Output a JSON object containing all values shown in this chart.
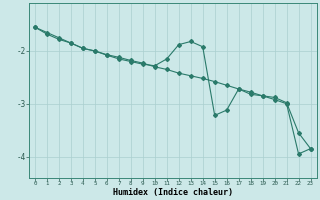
{
  "xlabel": "Humidex (Indice chaleur)",
  "background_color": "#cce8e8",
  "grid_color": "#aacfcf",
  "line_color": "#2a7a6a",
  "marker_color": "#2a7a6a",
  "x_data": [
    0,
    1,
    2,
    3,
    4,
    5,
    6,
    7,
    8,
    9,
    10,
    11,
    12,
    13,
    14,
    15,
    16,
    17,
    18,
    19,
    20,
    21,
    22,
    23
  ],
  "y_data1": [
    -1.55,
    -1.68,
    -1.78,
    -1.85,
    -1.95,
    -2.0,
    -2.07,
    -2.12,
    -2.18,
    -2.23,
    -2.3,
    -2.35,
    -2.42,
    -2.47,
    -2.52,
    -2.58,
    -2.65,
    -2.72,
    -2.78,
    -2.85,
    -2.92,
    -3.0,
    -3.95,
    -3.85
  ],
  "y_data2": [
    -1.55,
    -1.65,
    -1.75,
    -1.85,
    -1.95,
    -2.0,
    -2.08,
    -2.15,
    -2.2,
    -2.25,
    -2.28,
    -2.15,
    -1.88,
    -1.82,
    -1.92,
    -3.22,
    -3.12,
    -2.72,
    -2.82,
    -2.85,
    -2.88,
    -2.98,
    -3.55,
    -3.85
  ],
  "ylim": [
    -4.4,
    -1.1
  ],
  "xlim": [
    -0.5,
    23.5
  ],
  "yticks": [
    -4,
    -3,
    -2
  ],
  "xticks": [
    0,
    1,
    2,
    3,
    4,
    5,
    6,
    7,
    8,
    9,
    10,
    11,
    12,
    13,
    14,
    15,
    16,
    17,
    18,
    19,
    20,
    21,
    22,
    23
  ]
}
